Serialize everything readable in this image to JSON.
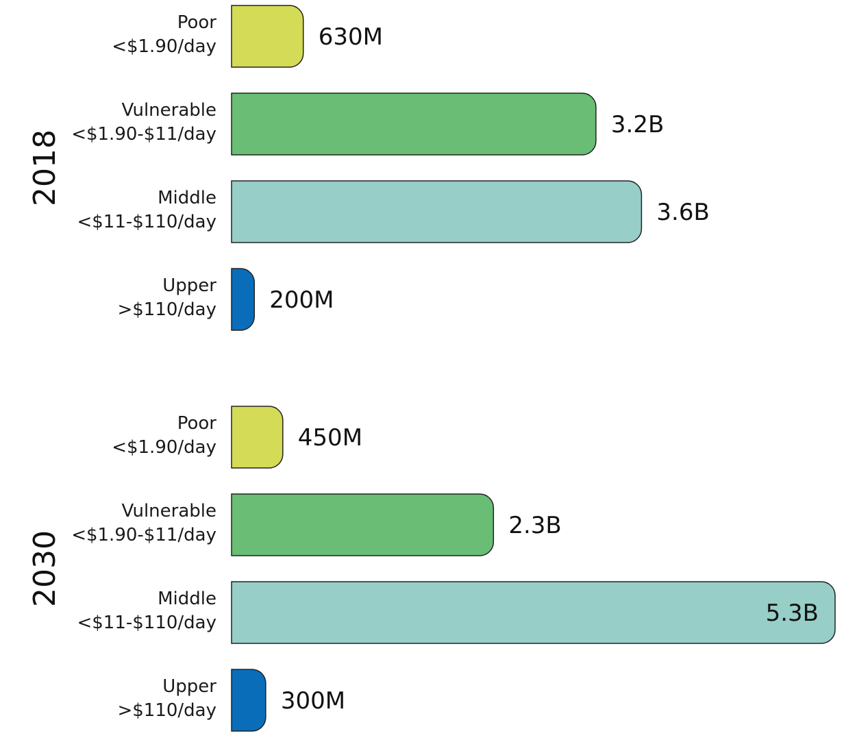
{
  "chart_data": {
    "type": "bar",
    "orientation": "horizontal",
    "title": "",
    "xlabel": "",
    "ylabel": "",
    "unit": "people",
    "xlim": [
      0,
      5300000000
    ],
    "grid": false,
    "colors": {
      "Poor": "#d4db57",
      "Vulnerable": "#69bd74",
      "Middle": "#97cec7",
      "Upper": "#0a6dba"
    },
    "groups": [
      {
        "year": "2018",
        "bars": [
          {
            "category": "Poor",
            "range": "<$1.90/day",
            "value": 630000000,
            "label": "630M"
          },
          {
            "category": "Vulnerable",
            "range": "<$1.90-$11/day",
            "value": 3200000000,
            "label": "3.2B"
          },
          {
            "category": "Middle",
            "range": "<$11-$110/day",
            "value": 3600000000,
            "label": "3.6B"
          },
          {
            "category": "Upper",
            "range": ">$110/day",
            "value": 200000000,
            "label": "200M"
          }
        ]
      },
      {
        "year": "2030",
        "bars": [
          {
            "category": "Poor",
            "range": "<$1.90/day",
            "value": 450000000,
            "label": "450M"
          },
          {
            "category": "Vulnerable",
            "range": "<$1.90-$11/day",
            "value": 2300000000,
            "label": "2.3B"
          },
          {
            "category": "Middle",
            "range": "<$11-$110/day",
            "value": 5300000000,
            "label": "5.3B"
          },
          {
            "category": "Upper",
            "range": ">$110/day",
            "value": 300000000,
            "label": "300M"
          }
        ]
      }
    ]
  }
}
